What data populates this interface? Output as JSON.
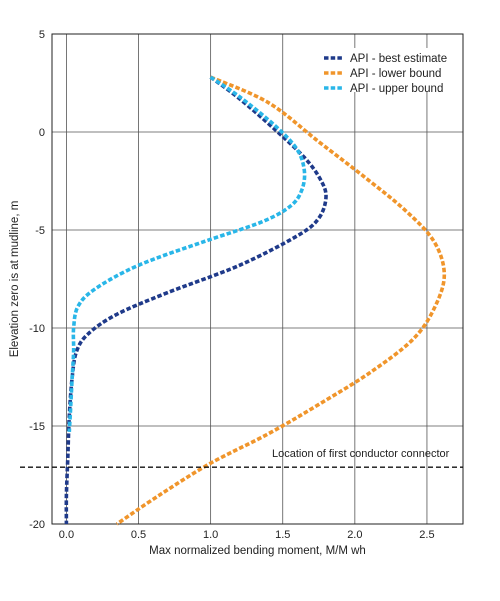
{
  "chart_data": {
    "type": "line",
    "title": "",
    "xlabel": "Max normalized bending moment, M/M wh",
    "ylabel": "Elevation zero is at mudline, m",
    "xlim": [
      -0.1,
      2.75
    ],
    "ylim": [
      -20,
      5
    ],
    "xticks": [
      "0.0",
      "0.5",
      "1.0",
      "1.5",
      "2.0",
      "2.5"
    ],
    "xtick_values": [
      0,
      0.5,
      1.0,
      1.5,
      2.0,
      2.5
    ],
    "yticks": [
      "5",
      "0",
      "-5",
      "-10",
      "-15",
      "-20"
    ],
    "ytick_values": [
      5,
      0,
      -5,
      -10,
      -15,
      -20
    ],
    "grid": true,
    "legend_position": "top-right",
    "series": [
      {
        "name": "API - best estimate",
        "color": "#1f3a8a",
        "points": [
          [
            1.0,
            2.8
          ],
          [
            1.2,
            1.7
          ],
          [
            1.45,
            0.1
          ],
          [
            1.65,
            -1.3
          ],
          [
            1.76,
            -2.4
          ],
          [
            1.8,
            -3.3
          ],
          [
            1.75,
            -4.4
          ],
          [
            1.6,
            -5.3
          ],
          [
            1.2,
            -6.8
          ],
          [
            0.7,
            -8.2
          ],
          [
            0.35,
            -9.3
          ],
          [
            0.15,
            -10.3
          ],
          [
            0.07,
            -11.2
          ],
          [
            0.04,
            -12.5
          ],
          [
            0.02,
            -14.5
          ],
          [
            0.01,
            -16.5
          ],
          [
            0.0,
            -18.5
          ],
          [
            0.0,
            -20.0
          ]
        ]
      },
      {
        "name": "API - lower bound",
        "color": "#f0952b",
        "points": [
          [
            1.0,
            2.8
          ],
          [
            1.4,
            1.5
          ],
          [
            1.75,
            -0.5
          ],
          [
            2.05,
            -2.2
          ],
          [
            2.35,
            -4.0
          ],
          [
            2.55,
            -5.6
          ],
          [
            2.62,
            -7.3
          ],
          [
            2.55,
            -9.0
          ],
          [
            2.4,
            -10.6
          ],
          [
            2.1,
            -12.3
          ],
          [
            1.75,
            -13.9
          ],
          [
            1.4,
            -15.4
          ],
          [
            1.0,
            -16.9
          ],
          [
            0.65,
            -18.5
          ],
          [
            0.35,
            -20.0
          ]
        ]
      },
      {
        "name": "API - upper bound",
        "color": "#29b6e8",
        "points": [
          [
            1.0,
            2.8
          ],
          [
            1.2,
            1.8
          ],
          [
            1.45,
            0.3
          ],
          [
            1.6,
            -0.9
          ],
          [
            1.65,
            -2.0
          ],
          [
            1.63,
            -3.0
          ],
          [
            1.55,
            -3.8
          ],
          [
            1.35,
            -4.6
          ],
          [
            0.95,
            -5.6
          ],
          [
            0.5,
            -6.8
          ],
          [
            0.2,
            -8.0
          ],
          [
            0.08,
            -8.9
          ],
          [
            0.05,
            -10.0
          ],
          [
            0.05,
            -11.2
          ],
          [
            0.04,
            -12.5
          ],
          [
            0.03,
            -14.0
          ],
          [
            0.02,
            -15.3
          ]
        ]
      }
    ],
    "annotations": [
      {
        "text": "Location of first conductor connector",
        "y": -17.1
      }
    ]
  }
}
